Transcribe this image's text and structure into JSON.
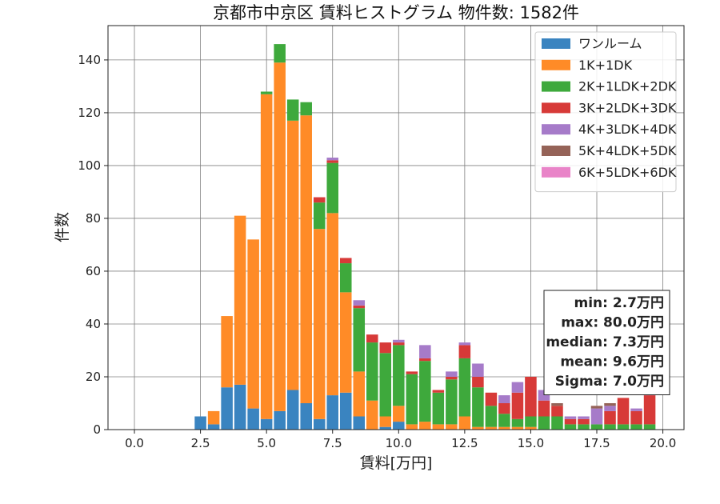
{
  "chart_data": {
    "type": "bar",
    "stacked": true,
    "title": "京都市中京区 賃料ヒストグラム 物件数: 1582件",
    "xlabel": "賃料[万円]",
    "ylabel": "件数",
    "xlim": [
      -1.0,
      20.8
    ],
    "ylim": [
      0,
      153
    ],
    "x_ticks": [
      0.0,
      2.5,
      5.0,
      7.5,
      10.0,
      12.5,
      15.0,
      17.5,
      20.0
    ],
    "x_tick_labels": [
      "0.0",
      "2.5",
      "5.0",
      "7.5",
      "10.0",
      "12.5",
      "15.0",
      "17.5",
      "20.0"
    ],
    "y_ticks": [
      0,
      20,
      40,
      60,
      80,
      100,
      120,
      140
    ],
    "y_tick_labels": [
      "0",
      "20",
      "40",
      "60",
      "80",
      "100",
      "120",
      "140"
    ],
    "grid": true,
    "legend_position": "top-right",
    "bin_width": 0.5,
    "bin_starts": [
      2.25,
      2.75,
      3.25,
      3.75,
      4.25,
      4.75,
      5.25,
      5.75,
      6.25,
      6.75,
      7.25,
      7.75,
      8.25,
      8.75,
      9.25,
      9.75,
      10.25,
      10.75,
      11.25,
      11.75,
      12.25,
      12.75,
      13.25,
      13.75,
      14.25,
      14.75,
      15.25,
      15.75,
      16.25,
      16.75,
      17.25,
      17.75,
      18.25,
      18.75,
      19.25
    ],
    "series": [
      {
        "name": "ワンルーム",
        "color": "#3a84c0",
        "values": [
          5,
          2,
          16,
          17,
          8,
          4,
          7,
          15,
          10,
          4,
          13,
          14,
          5,
          0,
          1,
          3,
          0,
          0,
          0,
          0,
          0,
          0,
          0,
          0,
          0,
          0,
          0,
          0,
          0,
          0,
          0,
          0,
          0,
          0,
          0
        ]
      },
      {
        "name": "1K+1DK",
        "color": "#ff8b27",
        "values": [
          0,
          5,
          27,
          64,
          64,
          123,
          132,
          102,
          109,
          72,
          69,
          38,
          17,
          11,
          4,
          6,
          2,
          3,
          2,
          2,
          5,
          1,
          1,
          1,
          1,
          1,
          0,
          0,
          0,
          0,
          0,
          0,
          0,
          0,
          0
        ]
      },
      {
        "name": "2K+1LDK+2DK",
        "color": "#3ea93c",
        "values": [
          0,
          0,
          0,
          0,
          0,
          1,
          7,
          8,
          5,
          10,
          19,
          11,
          24,
          22,
          24,
          23,
          19,
          23,
          12,
          17,
          22,
          15,
          8,
          5,
          3,
          4,
          5,
          5,
          2,
          2,
          2,
          2,
          2,
          2,
          2
        ]
      },
      {
        "name": "3K+2LDK+3DK",
        "color": "#d73a38",
        "values": [
          0,
          0,
          0,
          0,
          0,
          0,
          0,
          0,
          0,
          2,
          1,
          2,
          1,
          3,
          4,
          1,
          1,
          1,
          1,
          1,
          5,
          4,
          5,
          4,
          10,
          15,
          6,
          4,
          2,
          2,
          0,
          5,
          10,
          5,
          11
        ]
      },
      {
        "name": "4K+3LDK+4DK",
        "color": "#a67bc9",
        "values": [
          0,
          0,
          0,
          0,
          0,
          0,
          0,
          0,
          0,
          0,
          1,
          0,
          2,
          0,
          0,
          1,
          0,
          5,
          0,
          2,
          1,
          5,
          0,
          3,
          4,
          0,
          4,
          0,
          1,
          1,
          6,
          2,
          0,
          1,
          2
        ]
      },
      {
        "name": "5K+4LDK+5DK",
        "color": "#956358",
        "values": [
          0,
          0,
          0,
          0,
          0,
          0,
          0,
          0,
          0,
          0,
          0,
          0,
          0,
          0,
          0,
          0,
          0,
          0,
          0,
          0,
          0,
          0,
          0,
          0,
          0,
          0,
          0,
          1,
          0,
          0,
          1,
          1,
          0,
          0,
          0
        ]
      },
      {
        "name": "6K+5LDK+6DK",
        "color": "#e984c8",
        "values": [
          0,
          0,
          0,
          0,
          0,
          0,
          0,
          0,
          0,
          0,
          0,
          0,
          0,
          0,
          0,
          0,
          0,
          0,
          0,
          0,
          0,
          0,
          0,
          0,
          0,
          0,
          0,
          0,
          0,
          0,
          0,
          0,
          0,
          0,
          0
        ]
      }
    ],
    "stats_lines": [
      "min: 2.7万円",
      "max: 80.0万円",
      "median: 7.3万円",
      "mean: 9.6万円",
      "Sigma: 7.0万円"
    ]
  }
}
